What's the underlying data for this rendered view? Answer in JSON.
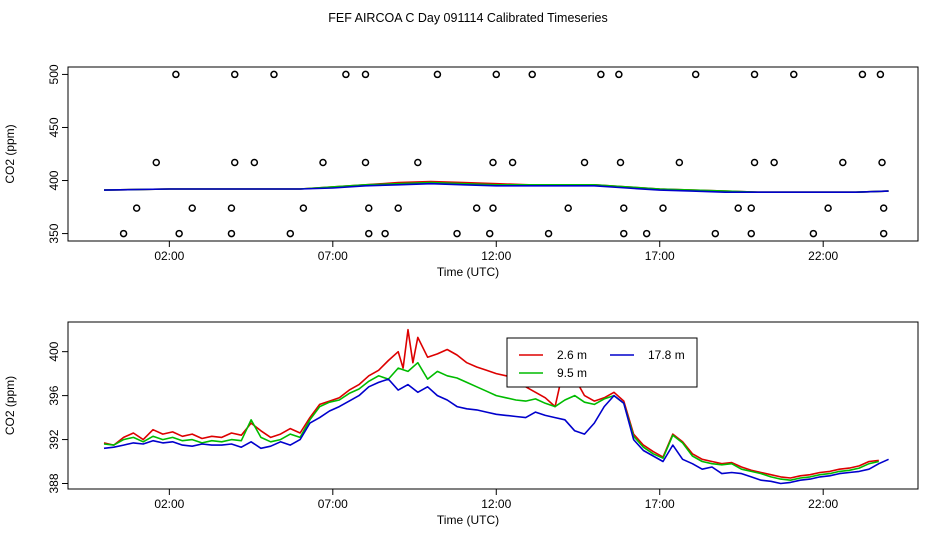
{
  "title": "FEF AIRCOA C  Day 091114  Calibrated Timeseries",
  "colors": {
    "red": "#dd0000",
    "green": "#00bb00",
    "blue": "#0000cc",
    "axis": "#000000"
  },
  "chart_data": [
    {
      "type": "line",
      "id": "top",
      "xlabel": "Time (UTC)",
      "ylabel": "CO2 (ppm)",
      "xlim": [
        -1.1,
        24.9
      ],
      "ylim": [
        343,
        507
      ],
      "xticks": [
        2,
        7,
        12,
        17,
        22
      ],
      "xtick_labels": [
        "02:00",
        "07:00",
        "12:00",
        "17:00",
        "22:00"
      ],
      "yticks": [
        350,
        400,
        450,
        500
      ],
      "ytick_labels": [
        "350",
        "400",
        "450",
        "500"
      ],
      "markers": {
        "style": "open-circle",
        "points": [
          [
            2.2,
            500
          ],
          [
            4.0,
            500
          ],
          [
            5.2,
            500
          ],
          [
            7.4,
            500
          ],
          [
            8.0,
            500
          ],
          [
            10.2,
            500
          ],
          [
            12.0,
            500
          ],
          [
            13.1,
            500
          ],
          [
            15.2,
            500
          ],
          [
            15.75,
            500
          ],
          [
            18.1,
            500
          ],
          [
            19.9,
            500
          ],
          [
            21.1,
            500
          ],
          [
            23.2,
            500
          ],
          [
            23.75,
            500
          ],
          [
            1.6,
            417
          ],
          [
            4.0,
            417
          ],
          [
            4.6,
            417
          ],
          [
            6.7,
            417
          ],
          [
            8.0,
            417
          ],
          [
            9.6,
            417
          ],
          [
            11.9,
            417
          ],
          [
            12.5,
            417
          ],
          [
            14.7,
            417
          ],
          [
            15.8,
            417
          ],
          [
            17.6,
            417
          ],
          [
            19.9,
            417
          ],
          [
            20.5,
            417
          ],
          [
            22.6,
            417
          ],
          [
            23.8,
            417
          ],
          [
            1.0,
            374
          ],
          [
            2.7,
            374
          ],
          [
            3.9,
            374
          ],
          [
            6.1,
            374
          ],
          [
            8.1,
            374
          ],
          [
            9.0,
            374
          ],
          [
            11.4,
            374
          ],
          [
            11.9,
            374
          ],
          [
            14.2,
            374
          ],
          [
            15.9,
            374
          ],
          [
            17.1,
            374
          ],
          [
            19.4,
            374
          ],
          [
            19.8,
            374
          ],
          [
            22.15,
            374
          ],
          [
            23.85,
            374
          ],
          [
            0.6,
            350
          ],
          [
            2.3,
            350
          ],
          [
            3.9,
            350
          ],
          [
            5.7,
            350
          ],
          [
            8.1,
            350
          ],
          [
            8.6,
            350
          ],
          [
            10.8,
            350
          ],
          [
            11.8,
            350
          ],
          [
            13.6,
            350
          ],
          [
            15.9,
            350
          ],
          [
            16.6,
            350
          ],
          [
            18.7,
            350
          ],
          [
            19.8,
            350
          ],
          [
            21.7,
            350
          ],
          [
            23.85,
            350
          ]
        ]
      },
      "series": [
        {
          "name": "2.6 m",
          "color": "#dd0000",
          "x": [
            0,
            2,
            4,
            6,
            7,
            8,
            9,
            10,
            11,
            12,
            13,
            14,
            15,
            16,
            17,
            18,
            19,
            20,
            21,
            22,
            23,
            24
          ],
          "values": [
            391,
            392,
            392,
            392,
            394,
            396,
            398,
            399,
            398,
            397,
            396,
            396,
            396,
            394,
            392,
            391,
            390,
            389,
            389,
            389,
            389,
            390
          ]
        },
        {
          "name": "9.5 m",
          "color": "#00bb00",
          "x": [
            0,
            2,
            4,
            6,
            7,
            8,
            9,
            10,
            11,
            12,
            13,
            14,
            15,
            16,
            17,
            18,
            19,
            20,
            21,
            22,
            23,
            24
          ],
          "values": [
            391,
            392,
            392,
            392,
            394,
            396,
            397,
            398,
            397,
            396,
            396,
            396,
            396,
            394,
            392,
            391,
            390,
            389,
            389,
            389,
            389,
            390
          ]
        },
        {
          "name": "17.8 m",
          "color": "#0000cc",
          "x": [
            0,
            2,
            4,
            6,
            7,
            8,
            9,
            10,
            11,
            12,
            13,
            14,
            15,
            16,
            17,
            18,
            19,
            20,
            21,
            22,
            23,
            24
          ],
          "values": [
            391,
            392,
            392,
            392,
            393,
            395,
            396,
            397,
            396,
            395,
            395,
            395,
            395,
            393,
            391,
            390,
            389,
            389,
            389,
            389,
            389,
            390
          ]
        }
      ]
    },
    {
      "type": "line",
      "id": "bottom",
      "xlabel": "Time (UTC)",
      "ylabel": "CO2 (ppm)",
      "xlim": [
        -1.1,
        24.9
      ],
      "ylim": [
        387.5,
        402.7
      ],
      "xticks": [
        2,
        7,
        12,
        17,
        22
      ],
      "xtick_labels": [
        "02:00",
        "07:00",
        "12:00",
        "17:00",
        "22:00"
      ],
      "yticks": [
        388,
        392,
        396,
        400
      ],
      "ytick_labels": [
        "388",
        "392",
        "396",
        "400"
      ],
      "legend": {
        "position": "top-right",
        "entries": [
          "2.6 m",
          "17.8 m",
          "9.5 m"
        ]
      },
      "series": [
        {
          "name": "2.6 m",
          "color": "#dd0000",
          "x": [
            0.0,
            0.3,
            0.6,
            0.9,
            1.2,
            1.5,
            1.8,
            2.1,
            2.4,
            2.7,
            3.0,
            3.3,
            3.6,
            3.9,
            4.2,
            4.5,
            4.8,
            5.1,
            5.4,
            5.7,
            6.0,
            6.3,
            6.6,
            6.9,
            7.2,
            7.5,
            7.8,
            8.1,
            8.4,
            8.7,
            9.0,
            9.15,
            9.3,
            9.45,
            9.6,
            9.9,
            10.2,
            10.5,
            10.8,
            11.1,
            11.4,
            11.7,
            12.0,
            12.3,
            12.6,
            12.9,
            13.2,
            13.5,
            13.8,
            14.1,
            14.4,
            14.7,
            15.0,
            15.3,
            15.6,
            15.9,
            16.2,
            16.5,
            16.8,
            17.1,
            17.4,
            17.7,
            18.0,
            18.3,
            18.6,
            18.9,
            19.2,
            19.5,
            19.8,
            20.1,
            20.4,
            20.7,
            21.0,
            21.3,
            21.6,
            21.9,
            22.2,
            22.5,
            22.8,
            23.1,
            23.4,
            23.7
          ],
          "values": [
            391.7,
            391.5,
            392.2,
            392.6,
            392.0,
            392.9,
            392.5,
            392.7,
            392.3,
            392.5,
            392.1,
            392.3,
            392.2,
            392.6,
            392.4,
            393.5,
            392.8,
            392.2,
            392.5,
            393.0,
            392.6,
            394.0,
            395.2,
            395.5,
            395.8,
            396.5,
            397.0,
            397.8,
            398.3,
            399.2,
            400.0,
            398.5,
            402.0,
            399.0,
            401.3,
            399.5,
            399.8,
            400.2,
            399.7,
            399.0,
            398.6,
            398.3,
            398.0,
            397.8,
            397.6,
            396.8,
            396.3,
            395.8,
            395.0,
            399.0,
            397.6,
            396.0,
            395.5,
            395.8,
            396.3,
            395.5,
            392.5,
            391.5,
            390.9,
            390.4,
            392.5,
            391.8,
            390.7,
            390.2,
            390.0,
            389.8,
            389.9,
            389.5,
            389.2,
            389.0,
            388.8,
            388.6,
            388.5,
            388.7,
            388.8,
            389.0,
            389.1,
            389.3,
            389.4,
            389.6,
            390.0,
            390.1
          ]
        },
        {
          "name": "9.5 m",
          "color": "#00bb00",
          "x": [
            0.0,
            0.3,
            0.6,
            0.9,
            1.2,
            1.5,
            1.8,
            2.1,
            2.4,
            2.7,
            3.0,
            3.3,
            3.6,
            3.9,
            4.2,
            4.5,
            4.8,
            5.1,
            5.4,
            5.7,
            6.0,
            6.3,
            6.6,
            6.9,
            7.2,
            7.5,
            7.8,
            8.1,
            8.4,
            8.7,
            9.0,
            9.3,
            9.6,
            9.9,
            10.2,
            10.5,
            10.8,
            11.1,
            11.4,
            11.7,
            12.0,
            12.3,
            12.6,
            12.9,
            13.2,
            13.5,
            13.8,
            14.1,
            14.4,
            14.7,
            15.0,
            15.3,
            15.6,
            15.9,
            16.2,
            16.5,
            16.8,
            17.1,
            17.4,
            17.7,
            18.0,
            18.3,
            18.6,
            18.9,
            19.2,
            19.5,
            19.8,
            20.1,
            20.4,
            20.7,
            21.0,
            21.3,
            21.6,
            21.9,
            22.2,
            22.5,
            22.8,
            23.1,
            23.4,
            23.7
          ],
          "values": [
            391.6,
            391.5,
            392.0,
            392.2,
            391.8,
            392.3,
            392.0,
            392.2,
            391.9,
            392.0,
            391.7,
            391.9,
            391.8,
            392.0,
            391.9,
            393.8,
            392.2,
            391.8,
            392.0,
            392.5,
            392.2,
            393.8,
            395.0,
            395.4,
            395.6,
            396.2,
            396.6,
            397.3,
            397.8,
            397.5,
            398.5,
            398.2,
            399.0,
            397.5,
            398.2,
            397.8,
            397.6,
            397.2,
            396.8,
            396.4,
            396.0,
            395.8,
            395.6,
            395.5,
            395.7,
            395.3,
            395.0,
            395.6,
            396.0,
            395.4,
            395.2,
            395.7,
            396.0,
            395.3,
            392.3,
            391.3,
            390.7,
            390.3,
            392.4,
            391.7,
            390.5,
            390.0,
            389.8,
            389.7,
            389.8,
            389.3,
            389.1,
            388.9,
            388.6,
            388.4,
            388.3,
            388.5,
            388.6,
            388.8,
            388.9,
            389.1,
            389.2,
            389.4,
            389.8,
            390.0
          ]
        },
        {
          "name": "17.8 m",
          "color": "#0000cc",
          "x": [
            0.0,
            0.3,
            0.6,
            0.9,
            1.2,
            1.5,
            1.8,
            2.1,
            2.4,
            2.7,
            3.0,
            3.3,
            3.6,
            3.9,
            4.2,
            4.5,
            4.8,
            5.1,
            5.4,
            5.7,
            6.0,
            6.3,
            6.6,
            6.9,
            7.2,
            7.5,
            7.8,
            8.1,
            8.4,
            8.7,
            9.0,
            9.3,
            9.6,
            9.9,
            10.2,
            10.5,
            10.8,
            11.1,
            11.4,
            11.7,
            12.0,
            12.3,
            12.6,
            12.9,
            13.2,
            13.5,
            13.8,
            14.1,
            14.4,
            14.7,
            15.0,
            15.3,
            15.6,
            15.9,
            16.2,
            16.5,
            16.8,
            17.1,
            17.4,
            17.7,
            18.0,
            18.3,
            18.6,
            18.9,
            19.2,
            19.5,
            19.8,
            20.1,
            20.4,
            20.7,
            21.0,
            21.3,
            21.6,
            21.9,
            22.2,
            22.5,
            22.8,
            23.1,
            23.4,
            23.7,
            24.0
          ],
          "values": [
            391.2,
            391.3,
            391.5,
            391.7,
            391.6,
            391.9,
            391.7,
            391.8,
            391.5,
            391.4,
            391.6,
            391.5,
            391.5,
            391.6,
            391.3,
            391.8,
            391.2,
            391.4,
            391.8,
            391.5,
            392.0,
            393.5,
            394.0,
            394.6,
            395.0,
            395.5,
            396.0,
            396.8,
            397.2,
            397.5,
            396.5,
            397.0,
            396.3,
            396.8,
            396.0,
            395.6,
            395.0,
            394.8,
            394.7,
            394.5,
            394.3,
            394.2,
            394.1,
            394.0,
            394.5,
            394.2,
            394.0,
            393.8,
            392.8,
            392.5,
            393.5,
            395.0,
            396.0,
            395.3,
            392.0,
            391.0,
            390.5,
            390.0,
            391.5,
            390.2,
            389.8,
            389.3,
            389.5,
            388.9,
            389.0,
            388.9,
            388.6,
            388.3,
            388.2,
            388.0,
            388.1,
            388.3,
            388.4,
            388.6,
            388.7,
            388.9,
            389.0,
            389.1,
            389.3,
            389.8,
            390.2
          ]
        }
      ]
    }
  ]
}
